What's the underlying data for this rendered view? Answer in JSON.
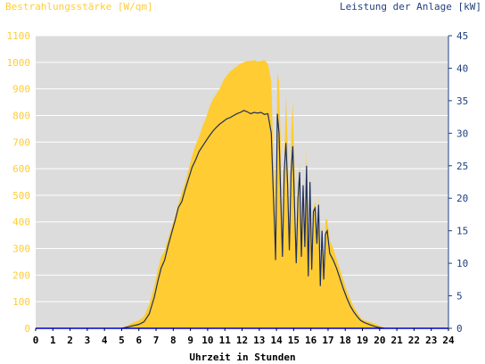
{
  "header": {
    "left_label": "Bestrahlungsstärke [W/qm]",
    "right_label": "Leistung der Anlage [kW]"
  },
  "colors": {
    "irradiance": "#ffcc33",
    "power": "#1f2f5c",
    "left_axis_text": "#ffcc33",
    "right_axis_text": "#1f3f7f",
    "plot_bg": "#dcdcdc",
    "grid": "#ffffff",
    "zero_line": "#0000cc"
  },
  "chart_data": {
    "type": "area",
    "xlabel": "Uhrzeit in Stunden",
    "xlim": [
      0,
      24
    ],
    "x_ticks": [
      "0",
      "1",
      "2",
      "3",
      "4",
      "5",
      "6",
      "7",
      "8",
      "9",
      "10",
      "11",
      "12",
      "13",
      "14",
      "15",
      "16",
      "17",
      "18",
      "19",
      "20",
      "21",
      "22",
      "23",
      "24"
    ],
    "y_left": {
      "label": "Bestrahlungsstärke [W/qm]",
      "ylim": [
        0,
        1100
      ],
      "ticks": [
        "0",
        "100",
        "200",
        "300",
        "400",
        "500",
        "600",
        "700",
        "800",
        "900",
        "1000",
        "1100"
      ]
    },
    "y_right": {
      "label": "Leistung der Anlage [kW]",
      "ylim": [
        0,
        45
      ],
      "ticks": [
        "0",
        "5",
        "10",
        "15",
        "20",
        "25",
        "30",
        "35",
        "40",
        "45"
      ]
    },
    "grid": true,
    "series": [
      {
        "axis": "left",
        "style": "area",
        "points": [
          [
            5.0,
            0
          ],
          [
            5.3,
            10
          ],
          [
            5.6,
            20
          ],
          [
            6.0,
            30
          ],
          [
            6.3,
            45
          ],
          [
            6.6,
            90
          ],
          [
            6.9,
            160
          ],
          [
            7.1,
            220
          ],
          [
            7.3,
            270
          ],
          [
            7.5,
            290
          ],
          [
            7.7,
            340
          ],
          [
            7.9,
            380
          ],
          [
            8.1,
            420
          ],
          [
            8.3,
            470
          ],
          [
            8.5,
            510
          ],
          [
            8.7,
            550
          ],
          [
            8.9,
            600
          ],
          [
            9.1,
            650
          ],
          [
            9.3,
            690
          ],
          [
            9.5,
            720
          ],
          [
            9.7,
            760
          ],
          [
            9.9,
            790
          ],
          [
            10.1,
            830
          ],
          [
            10.3,
            860
          ],
          [
            10.5,
            880
          ],
          [
            10.7,
            900
          ],
          [
            10.9,
            930
          ],
          [
            11.1,
            950
          ],
          [
            11.3,
            965
          ],
          [
            11.5,
            975
          ],
          [
            11.7,
            985
          ],
          [
            11.9,
            995
          ],
          [
            12.1,
            1000
          ],
          [
            12.3,
            1005
          ],
          [
            12.5,
            1005
          ],
          [
            12.7,
            1008
          ],
          [
            12.9,
            1002
          ],
          [
            13.1,
            1005
          ],
          [
            13.3,
            1008
          ],
          [
            13.5,
            995
          ],
          [
            13.7,
            930
          ],
          [
            13.8,
            700
          ],
          [
            13.9,
            560
          ],
          [
            13.95,
            300
          ],
          [
            14.05,
            960
          ],
          [
            14.15,
            930
          ],
          [
            14.25,
            700
          ],
          [
            14.35,
            280
          ],
          [
            14.45,
            620
          ],
          [
            14.55,
            880
          ],
          [
            14.65,
            700
          ],
          [
            14.75,
            300
          ],
          [
            14.85,
            720
          ],
          [
            14.95,
            850
          ],
          [
            15.05,
            600
          ],
          [
            15.15,
            240
          ],
          [
            15.25,
            520
          ],
          [
            15.35,
            620
          ],
          [
            15.45,
            270
          ],
          [
            15.55,
            560
          ],
          [
            15.65,
            310
          ],
          [
            15.75,
            680
          ],
          [
            15.85,
            200
          ],
          [
            15.95,
            590
          ],
          [
            16.05,
            230
          ],
          [
            16.15,
            450
          ],
          [
            16.25,
            480
          ],
          [
            16.35,
            350
          ],
          [
            16.45,
            500
          ],
          [
            16.55,
            160
          ],
          [
            16.65,
            400
          ],
          [
            16.75,
            180
          ],
          [
            16.85,
            410
          ],
          [
            16.95,
            410
          ],
          [
            17.1,
            330
          ],
          [
            17.3,
            300
          ],
          [
            17.5,
            260
          ],
          [
            17.7,
            220
          ],
          [
            17.9,
            180
          ],
          [
            18.1,
            140
          ],
          [
            18.3,
            110
          ],
          [
            18.5,
            80
          ],
          [
            18.7,
            60
          ],
          [
            18.9,
            40
          ],
          [
            19.1,
            30
          ],
          [
            19.4,
            25
          ],
          [
            19.7,
            18
          ],
          [
            20.0,
            10
          ],
          [
            20.3,
            0
          ]
        ]
      },
      {
        "axis": "right",
        "style": "line",
        "points": [
          [
            5.0,
            0
          ],
          [
            5.5,
            0.3
          ],
          [
            6.0,
            0.6
          ],
          [
            6.3,
            1.0
          ],
          [
            6.6,
            2.2
          ],
          [
            6.9,
            4.8
          ],
          [
            7.1,
            7.2
          ],
          [
            7.3,
            9.3
          ],
          [
            7.5,
            10.5
          ],
          [
            7.7,
            12.7
          ],
          [
            7.9,
            14.6
          ],
          [
            8.1,
            16.5
          ],
          [
            8.3,
            18.6
          ],
          [
            8.5,
            19.5
          ],
          [
            8.7,
            21.4
          ],
          [
            8.9,
            23.1
          ],
          [
            9.1,
            24.8
          ],
          [
            9.3,
            25.9
          ],
          [
            9.5,
            27.2
          ],
          [
            9.7,
            28.0
          ],
          [
            9.9,
            28.8
          ],
          [
            10.1,
            29.6
          ],
          [
            10.3,
            30.3
          ],
          [
            10.5,
            30.9
          ],
          [
            10.7,
            31.4
          ],
          [
            10.9,
            31.8
          ],
          [
            11.1,
            32.2
          ],
          [
            11.3,
            32.4
          ],
          [
            11.5,
            32.7
          ],
          [
            11.7,
            33.0
          ],
          [
            11.9,
            33.2
          ],
          [
            12.1,
            33.5
          ],
          [
            12.3,
            33.3
          ],
          [
            12.5,
            33.0
          ],
          [
            12.7,
            33.2
          ],
          [
            12.9,
            33.1
          ],
          [
            13.1,
            33.2
          ],
          [
            13.3,
            32.9
          ],
          [
            13.5,
            33.0
          ],
          [
            13.7,
            30.0
          ],
          [
            13.8,
            22.0
          ],
          [
            13.9,
            15.0
          ],
          [
            13.95,
            10.5
          ],
          [
            14.05,
            33.0
          ],
          [
            14.15,
            30.0
          ],
          [
            14.25,
            20.0
          ],
          [
            14.35,
            11.0
          ],
          [
            14.45,
            24.0
          ],
          [
            14.55,
            28.5
          ],
          [
            14.65,
            22.0
          ],
          [
            14.75,
            12.0
          ],
          [
            14.85,
            24.0
          ],
          [
            14.95,
            28.0
          ],
          [
            15.05,
            19.0
          ],
          [
            15.15,
            10.0
          ],
          [
            15.25,
            20.0
          ],
          [
            15.35,
            24.0
          ],
          [
            15.45,
            11.0
          ],
          [
            15.55,
            22.0
          ],
          [
            15.65,
            12.5
          ],
          [
            15.75,
            25.0
          ],
          [
            15.85,
            8.0
          ],
          [
            15.95,
            22.5
          ],
          [
            16.05,
            9.0
          ],
          [
            16.15,
            18.0
          ],
          [
            16.25,
            18.5
          ],
          [
            16.35,
            13.0
          ],
          [
            16.45,
            19.0
          ],
          [
            16.55,
            6.5
          ],
          [
            16.65,
            15.0
          ],
          [
            16.75,
            7.5
          ],
          [
            16.85,
            14.5
          ],
          [
            16.95,
            15.0
          ],
          [
            17.1,
            11.5
          ],
          [
            17.3,
            10.5
          ],
          [
            17.5,
            9.2
          ],
          [
            17.7,
            7.6
          ],
          [
            17.9,
            6.0
          ],
          [
            18.1,
            4.6
          ],
          [
            18.3,
            3.4
          ],
          [
            18.5,
            2.5
          ],
          [
            18.7,
            1.8
          ],
          [
            18.9,
            1.2
          ],
          [
            19.1,
            0.9
          ],
          [
            19.4,
            0.6
          ],
          [
            19.7,
            0.3
          ],
          [
            20.0,
            0.1
          ],
          [
            20.3,
            0
          ]
        ]
      }
    ]
  }
}
